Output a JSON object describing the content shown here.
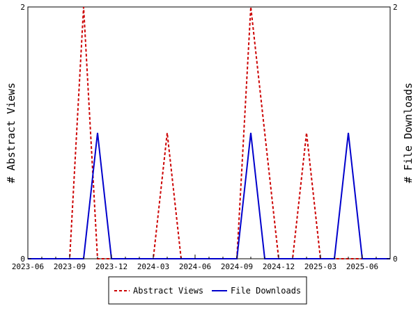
{
  "chart_data": {
    "type": "line",
    "x_categories": [
      "2023-06",
      "2023-07",
      "2023-08",
      "2023-09",
      "2023-10",
      "2023-11",
      "2023-12",
      "2024-01",
      "2024-02",
      "2024-03",
      "2024-04",
      "2024-05",
      "2024-06",
      "2024-07",
      "2024-08",
      "2024-09",
      "2024-10",
      "2024-11",
      "2024-12",
      "2025-01",
      "2025-02",
      "2025-03",
      "2025-04",
      "2025-05",
      "2025-06",
      "2025-07",
      "2025-08"
    ],
    "x_tick_labels": [
      "2023-06",
      "2023-09",
      "2023-12",
      "2024-03",
      "2024-06",
      "2024-09",
      "2024-12",
      "2025-03",
      "2025-06"
    ],
    "series": [
      {
        "name": "Abstract Views",
        "axis": "left",
        "color": "#cc0000",
        "dash": "dashed",
        "values": [
          0,
          0,
          0,
          0,
          2,
          0,
          0,
          0,
          0,
          0,
          1,
          0,
          0,
          0,
          0,
          0,
          2,
          1,
          0,
          0,
          1,
          0,
          0,
          0,
          0,
          0,
          0
        ]
      },
      {
        "name": "File Downloads",
        "axis": "right",
        "color": "#0000cc",
        "dash": "solid",
        "values": [
          0,
          0,
          0,
          0,
          0,
          1,
          0,
          0,
          0,
          0,
          0,
          0,
          0,
          0,
          0,
          0,
          1,
          0,
          0,
          0,
          0,
          0,
          0,
          1,
          0,
          0,
          0
        ]
      }
    ],
    "ylabel_left": "# Abstract Views",
    "ylabel_right": "# File Downloads",
    "ylim_left": [
      0,
      2
    ],
    "ylim_right": [
      0,
      2
    ],
    "y_ticks_left": [
      "0",
      "2"
    ],
    "y_ticks_right": [
      "0",
      "2"
    ],
    "grid": false,
    "legend_position": "bottom-center"
  }
}
